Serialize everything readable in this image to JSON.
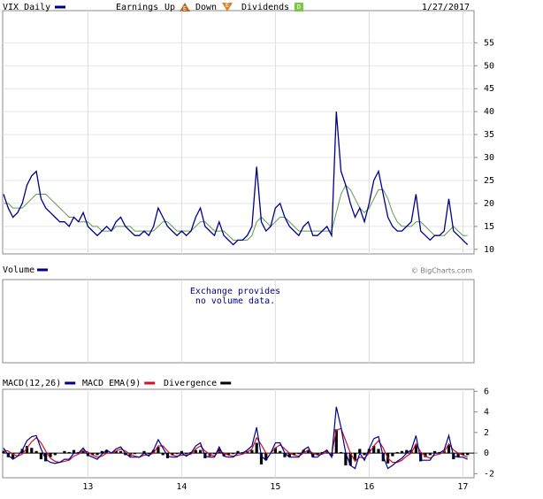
{
  "chart_data": [
    {
      "type": "line",
      "title": "VIX Daily",
      "legend_items": [
        "Earnings",
        "Up",
        "Down",
        "Dividends"
      ],
      "icons": [
        "E",
        "E",
        "D"
      ],
      "date": "1/27/2017",
      "ylim": [
        9,
        62
      ],
      "yticks": [
        10,
        15,
        20,
        25,
        30,
        35,
        40,
        45,
        50,
        55
      ],
      "grid": true,
      "series": [
        {
          "name": "VIX Daily",
          "color": "#00008b",
          "values": [
            22,
            19,
            17,
            18,
            20,
            24,
            26,
            27,
            21,
            19,
            18,
            17,
            16,
            16,
            15,
            17,
            16,
            18,
            15,
            14,
            13,
            14,
            15,
            14,
            16,
            17,
            15,
            14,
            13,
            13,
            14,
            13,
            15,
            19,
            17,
            15,
            14,
            13,
            14,
            13,
            14,
            17,
            19,
            15,
            14,
            13,
            16,
            13,
            12,
            11,
            12,
            12,
            13,
            15,
            28,
            16,
            14,
            15,
            19,
            20,
            17,
            15,
            14,
            13,
            15,
            16,
            13,
            13,
            14,
            15,
            13,
            40,
            27,
            24,
            20,
            17,
            19,
            16,
            20,
            25,
            27,
            22,
            17,
            15,
            14,
            14,
            15,
            16,
            22,
            14,
            13,
            12,
            13,
            13,
            14,
            21,
            14,
            13,
            12,
            11
          ]
        },
        {
          "color": "#5e9a4e",
          "values": [
            20,
            20,
            19,
            19,
            19,
            20,
            21,
            22,
            22,
            22,
            21,
            20,
            19,
            18,
            17,
            17,
            16,
            16,
            16,
            15,
            15,
            14,
            14,
            14,
            15,
            15,
            15,
            15,
            14,
            14,
            14,
            14,
            14,
            15,
            16,
            16,
            15,
            14,
            14,
            14,
            14,
            15,
            16,
            16,
            15,
            14,
            14,
            14,
            13,
            12,
            12,
            12,
            12,
            13,
            16,
            17,
            16,
            15,
            16,
            17,
            17,
            16,
            15,
            14,
            14,
            14,
            14,
            14,
            14,
            14,
            14,
            18,
            22,
            24,
            23,
            21,
            19,
            18,
            19,
            21,
            23,
            23,
            21,
            18,
            16,
            15,
            15,
            15,
            16,
            16,
            15,
            14,
            13,
            13,
            13,
            14,
            15,
            14,
            13,
            13
          ]
        }
      ]
    },
    {
      "type": "volume",
      "title": "Volume",
      "message": [
        "Exchange provides",
        "no volume data."
      ],
      "credit": "© BigCharts.com"
    },
    {
      "type": "macd",
      "ylim": [
        -2.4,
        6.2
      ],
      "yticks": [
        -2,
        0,
        2,
        4,
        6
      ],
      "categories": [
        null,
        null,
        null,
        null,
        null,
        null,
        null,
        null,
        null,
        null,
        null,
        null,
        null,
        null,
        null,
        null,
        null,
        null,
        "13",
        null,
        null,
        null,
        null,
        null,
        null,
        null,
        null,
        null,
        null,
        null,
        null,
        null,
        null,
        null,
        null,
        null,
        null,
        null,
        "14",
        null,
        null,
        null,
        null,
        null,
        null,
        null,
        null,
        null,
        null,
        null,
        null,
        null,
        null,
        null,
        null,
        null,
        null,
        null,
        "15",
        null,
        null,
        null,
        null,
        null,
        null,
        null,
        null,
        null,
        null,
        null,
        null,
        null,
        null,
        null,
        null,
        null,
        null,
        null,
        "16",
        null,
        null,
        null,
        null,
        null,
        null,
        null,
        null,
        null,
        null,
        null,
        null,
        null,
        null,
        null,
        null,
        null,
        null,
        null,
        "17",
        null
      ],
      "series": [
        {
          "name": "MACD(12,26)",
          "color": "#00008b",
          "values": [
            0.5,
            -0.2,
            -0.6,
            -0.3,
            0.3,
            1.2,
            1.6,
            1.7,
            0.4,
            -0.6,
            -0.9,
            -1.0,
            -0.9,
            -0.6,
            -0.6,
            0.0,
            0.0,
            0.5,
            -0.2,
            -0.4,
            -0.6,
            -0.1,
            0.3,
            0.0,
            0.4,
            0.6,
            0.0,
            -0.4,
            -0.4,
            -0.4,
            0.0,
            -0.3,
            0.3,
            1.3,
            0.5,
            -0.3,
            -0.4,
            -0.4,
            0.0,
            -0.3,
            0.0,
            0.7,
            1.0,
            -0.3,
            -0.4,
            -0.4,
            0.6,
            -0.3,
            -0.4,
            -0.4,
            0.0,
            0.0,
            0.3,
            0.7,
            2.5,
            -0.3,
            -0.7,
            0.0,
            1.0,
            1.0,
            0.0,
            -0.4,
            -0.4,
            -0.4,
            0.3,
            0.6,
            -0.4,
            -0.4,
            0.0,
            0.3,
            -0.4,
            4.5,
            2.5,
            0.0,
            -1.2,
            -1.5,
            0.0,
            -0.7,
            0.4,
            1.4,
            1.6,
            -0.3,
            -1.5,
            -1.2,
            -0.8,
            -0.5,
            0.0,
            0.3,
            1.7,
            -0.7,
            -0.7,
            -0.7,
            0.0,
            0.0,
            0.3,
            1.7,
            -0.3,
            -0.4,
            -0.4,
            -0.6
          ]
        },
        {
          "name": "MACD EMA(9)",
          "color": "#d0102a",
          "values": [
            0.3,
            0.2,
            -0.1,
            -0.3,
            -0.1,
            0.5,
            1.1,
            1.5,
            1.0,
            0.2,
            -0.5,
            -0.8,
            -0.9,
            -0.8,
            -0.7,
            -0.3,
            -0.1,
            0.3,
            0.1,
            -0.2,
            -0.4,
            -0.3,
            0.0,
            0.0,
            0.2,
            0.4,
            0.2,
            -0.1,
            -0.3,
            -0.4,
            -0.2,
            -0.2,
            0.0,
            0.7,
            0.7,
            0.2,
            -0.2,
            -0.3,
            -0.2,
            -0.2,
            -0.1,
            0.4,
            0.7,
            0.2,
            -0.1,
            -0.3,
            0.2,
            0.0,
            -0.2,
            -0.3,
            -0.2,
            -0.1,
            0.1,
            0.4,
            1.5,
            0.8,
            0.0,
            0.0,
            0.5,
            0.8,
            0.4,
            0.0,
            -0.2,
            -0.3,
            0.0,
            0.3,
            0.0,
            -0.2,
            -0.1,
            0.1,
            -0.1,
            2.2,
            2.4,
            1.2,
            0.0,
            -0.8,
            -0.4,
            -0.5,
            0.0,
            0.7,
            1.2,
            0.5,
            -0.5,
            -0.9,
            -0.9,
            -0.7,
            -0.3,
            0.0,
            0.9,
            0.1,
            -0.3,
            -0.5,
            -0.2,
            -0.1,
            0.1,
            0.9,
            0.3,
            0.0,
            -0.2,
            -0.4
          ]
        },
        {
          "name": "Divergence",
          "color": "#000000",
          "values": [
            0.2,
            -0.4,
            -0.5,
            0.0,
            0.4,
            0.7,
            0.5,
            0.2,
            -0.6,
            -0.8,
            -0.4,
            -0.2,
            0.0,
            0.2,
            0.1,
            0.3,
            0.1,
            0.2,
            -0.3,
            -0.2,
            -0.2,
            0.2,
            0.3,
            0.0,
            0.2,
            0.2,
            -0.2,
            -0.3,
            -0.1,
            0.0,
            0.2,
            -0.1,
            0.3,
            0.6,
            -0.2,
            -0.5,
            -0.2,
            -0.1,
            0.2,
            -0.1,
            0.1,
            0.3,
            0.3,
            -0.5,
            -0.3,
            -0.1,
            0.4,
            -0.3,
            -0.2,
            -0.1,
            0.2,
            0.1,
            0.2,
            0.3,
            1.0,
            -1.1,
            -0.7,
            0.0,
            0.5,
            0.2,
            -0.4,
            -0.4,
            -0.2,
            -0.1,
            0.3,
            0.3,
            -0.4,
            -0.2,
            0.1,
            0.2,
            -0.3,
            2.3,
            0.1,
            -1.2,
            -1.2,
            -0.7,
            0.4,
            -0.2,
            0.4,
            0.7,
            0.4,
            -0.8,
            -1.0,
            -0.3,
            0.1,
            0.2,
            0.3,
            0.3,
            0.8,
            -0.8,
            -0.4,
            -0.2,
            0.2,
            0.1,
            0.2,
            0.8,
            -0.6,
            -0.4,
            -0.2,
            -0.2
          ]
        }
      ]
    }
  ]
}
